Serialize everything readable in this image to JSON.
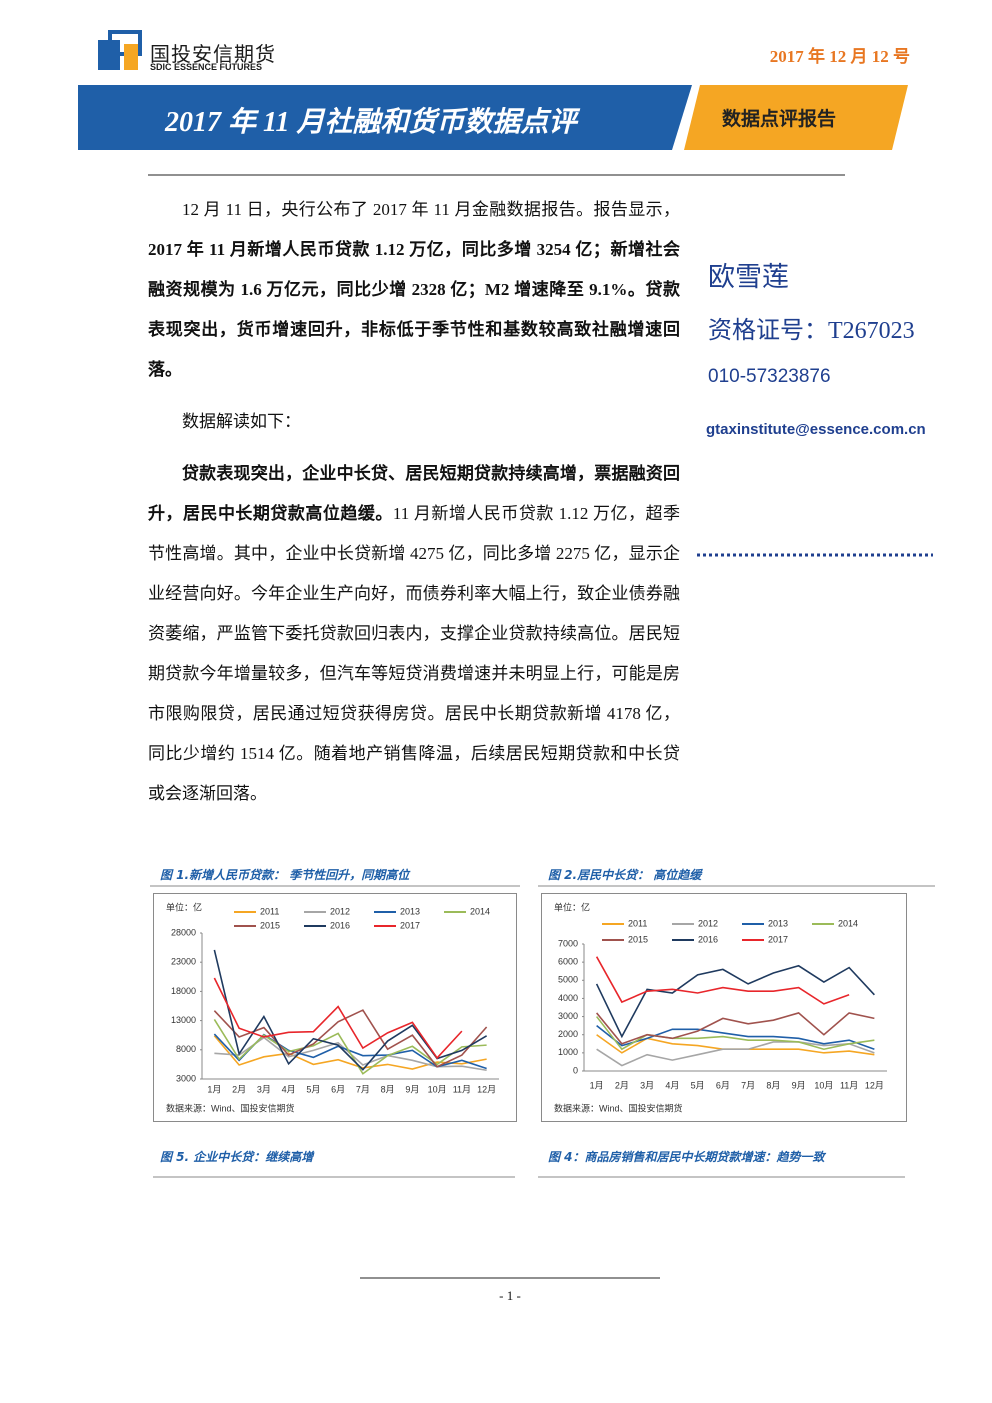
{
  "header": {
    "logo_cn": "国投安信期货",
    "logo_en": "SDIC ESSENCE FUTURES",
    "date": "2017 年 12 月 12 号",
    "title": "2017 年 11 月社融和货币数据点评",
    "tag": "数据点评报告"
  },
  "author": {
    "name": "欧雪莲",
    "cert": "资格证号：T267023",
    "phone": "010-57323876",
    "email": "gtaxinstitute@essence.com.cn"
  },
  "body": [
    {
      "runs": [
        {
          "text": "12 月 11 日，央行公布了 2017 年 11 月金融数据报告。报告显示，",
          "bold": false
        },
        {
          "text": "2017 年 11 月新增人民币贷款 1.12 万亿，同比多增 3254 亿；新增社会融资规模为 1.6 万亿元，同比少增 2328 亿；M2 增速降至 9.1%。贷款表现突出，货币增速回升，非标低于季节性和基数较高致社融增速回落。",
          "bold": true
        }
      ]
    },
    {
      "runs": [
        {
          "text": "数据解读如下：",
          "bold": false
        }
      ]
    },
    {
      "runs": [
        {
          "text": "贷款表现突出，企业中长贷、居民短期贷款持续高增，票据融资回升，居民中长期贷款高位趋缓。",
          "bold": true
        },
        {
          "text": "11 月新增人民币贷款 1.12 万亿，超季节性高增。其中，企业中长贷新增 4275 亿，同比多增 2275 亿，显示企业经营向好。今年企业生产向好，而债券利率大幅上行，致企业债券融资萎缩，严监管下委托贷款回归表内，支撑企业贷款持续高位。居民短期贷款今年增量较多，但汽车等短贷消费增速并未明显上行，可能是房市限购限贷，居民通过短贷获得房贷。居民中长期贷款新增 4178 亿，同比少增约 1514 亿。随着地产销售降温，后续居民短期贷款和中长贷或会逐渐回落。",
          "bold": false
        }
      ]
    }
  ],
  "chart_data": [
    {
      "type": "line",
      "caption": "图 1.新增人民币贷款： 季节性回升，同期高位",
      "unit": "单位：亿",
      "source": "数据来源：Wind、国投安信期货",
      "categories": [
        "1月",
        "2月",
        "3月",
        "4月",
        "5月",
        "6月",
        "7月",
        "8月",
        "9月",
        "10月",
        "11月",
        "12月"
      ],
      "ylim": [
        3000,
        28000
      ],
      "yticks": [
        3000,
        8000,
        13000,
        18000,
        23000,
        28000
      ],
      "series": [
        {
          "name": "2011",
          "color": "#f5a623",
          "values": [
            10400,
            5400,
            6800,
            7400,
            5500,
            6300,
            4900,
            5500,
            4700,
            5900,
            5600,
            6400
          ]
        },
        {
          "name": "2012",
          "color": "#a6a6a6",
          "values": [
            7400,
            7100,
            10100,
            6800,
            7900,
            9200,
            5400,
            7000,
            6200,
            5100,
            5200,
            4500
          ]
        },
        {
          "name": "2013",
          "color": "#1f5fa8",
          "values": [
            10700,
            6200,
            10600,
            7900,
            6700,
            8600,
            7000,
            7100,
            7900,
            5100,
            6200,
            4800
          ]
        },
        {
          "name": "2014",
          "color": "#9bbb59",
          "values": [
            13200,
            6400,
            10500,
            7700,
            8700,
            10800,
            3900,
            7000,
            8600,
            5500,
            8500,
            8800
          ]
        },
        {
          "name": "2015",
          "color": "#a0524d",
          "values": [
            14700,
            10200,
            11800,
            7100,
            9000,
            12800,
            14800,
            8100,
            10500,
            5100,
            7100,
            11900
          ]
        },
        {
          "name": "2016",
          "color": "#1f3a5f",
          "values": [
            25100,
            7300,
            13700,
            5600,
            9900,
            8800,
            4600,
            9500,
            12200,
            6500,
            7900,
            10400
          ]
        },
        {
          "name": "2017",
          "color": "#e8262b",
          "values": [
            20300,
            11700,
            10200,
            11000,
            11100,
            15400,
            8300,
            10900,
            12700,
            6600,
            11200,
            null
          ]
        }
      ]
    },
    {
      "type": "line",
      "caption": "图 2.居民中长贷： 高位趋缓",
      "unit": "单位：亿",
      "source": "数据来源：Wind、国投安信期货",
      "categories": [
        "1月",
        "2月",
        "3月",
        "4月",
        "5月",
        "6月",
        "7月",
        "8月",
        "9月",
        "10月",
        "11月",
        "12月"
      ],
      "ylim": [
        0,
        7000
      ],
      "yticks": [
        0,
        1000,
        2000,
        3000,
        4000,
        5000,
        6000,
        7000
      ],
      "series": [
        {
          "name": "2011",
          "color": "#f5a623",
          "values": [
            2000,
            1000,
            1800,
            1500,
            1400,
            1200,
            1200,
            1200,
            1200,
            1000,
            1100,
            900
          ]
        },
        {
          "name": "2012",
          "color": "#a6a6a6",
          "values": [
            1200,
            300,
            900,
            600,
            900,
            1200,
            1200,
            1600,
            1600,
            1400,
            1500,
            1000
          ]
        },
        {
          "name": "2013",
          "color": "#1f5fa8",
          "values": [
            2500,
            1400,
            1800,
            2300,
            2300,
            2100,
            1900,
            1900,
            1800,
            1500,
            1700,
            1200
          ]
        },
        {
          "name": "2014",
          "color": "#9bbb59",
          "values": [
            3000,
            1200,
            2000,
            1800,
            1800,
            1900,
            1700,
            1700,
            1600,
            1200,
            1500,
            1700
          ]
        },
        {
          "name": "2015",
          "color": "#a0524d",
          "values": [
            3200,
            1500,
            2000,
            1800,
            2200,
            2900,
            2600,
            2800,
            3200,
            2000,
            3200,
            2900
          ]
        },
        {
          "name": "2016",
          "color": "#1f3a5f",
          "values": [
            4800,
            1900,
            4500,
            4300,
            5300,
            5600,
            4800,
            5400,
            5800,
            4900,
            5700,
            4200
          ]
        },
        {
          "name": "2017",
          "color": "#e8262b",
          "values": [
            6300,
            3800,
            4400,
            4500,
            4300,
            4600,
            4400,
            4400,
            4600,
            3700,
            4200,
            null
          ]
        }
      ]
    }
  ],
  "captions_below": [
    "图 5. 企业中长贷：继续高增",
    "图 4：商品房销售和居民中长期贷款增速：趋势一致"
  ],
  "footer": {
    "page": "- 1 -"
  }
}
